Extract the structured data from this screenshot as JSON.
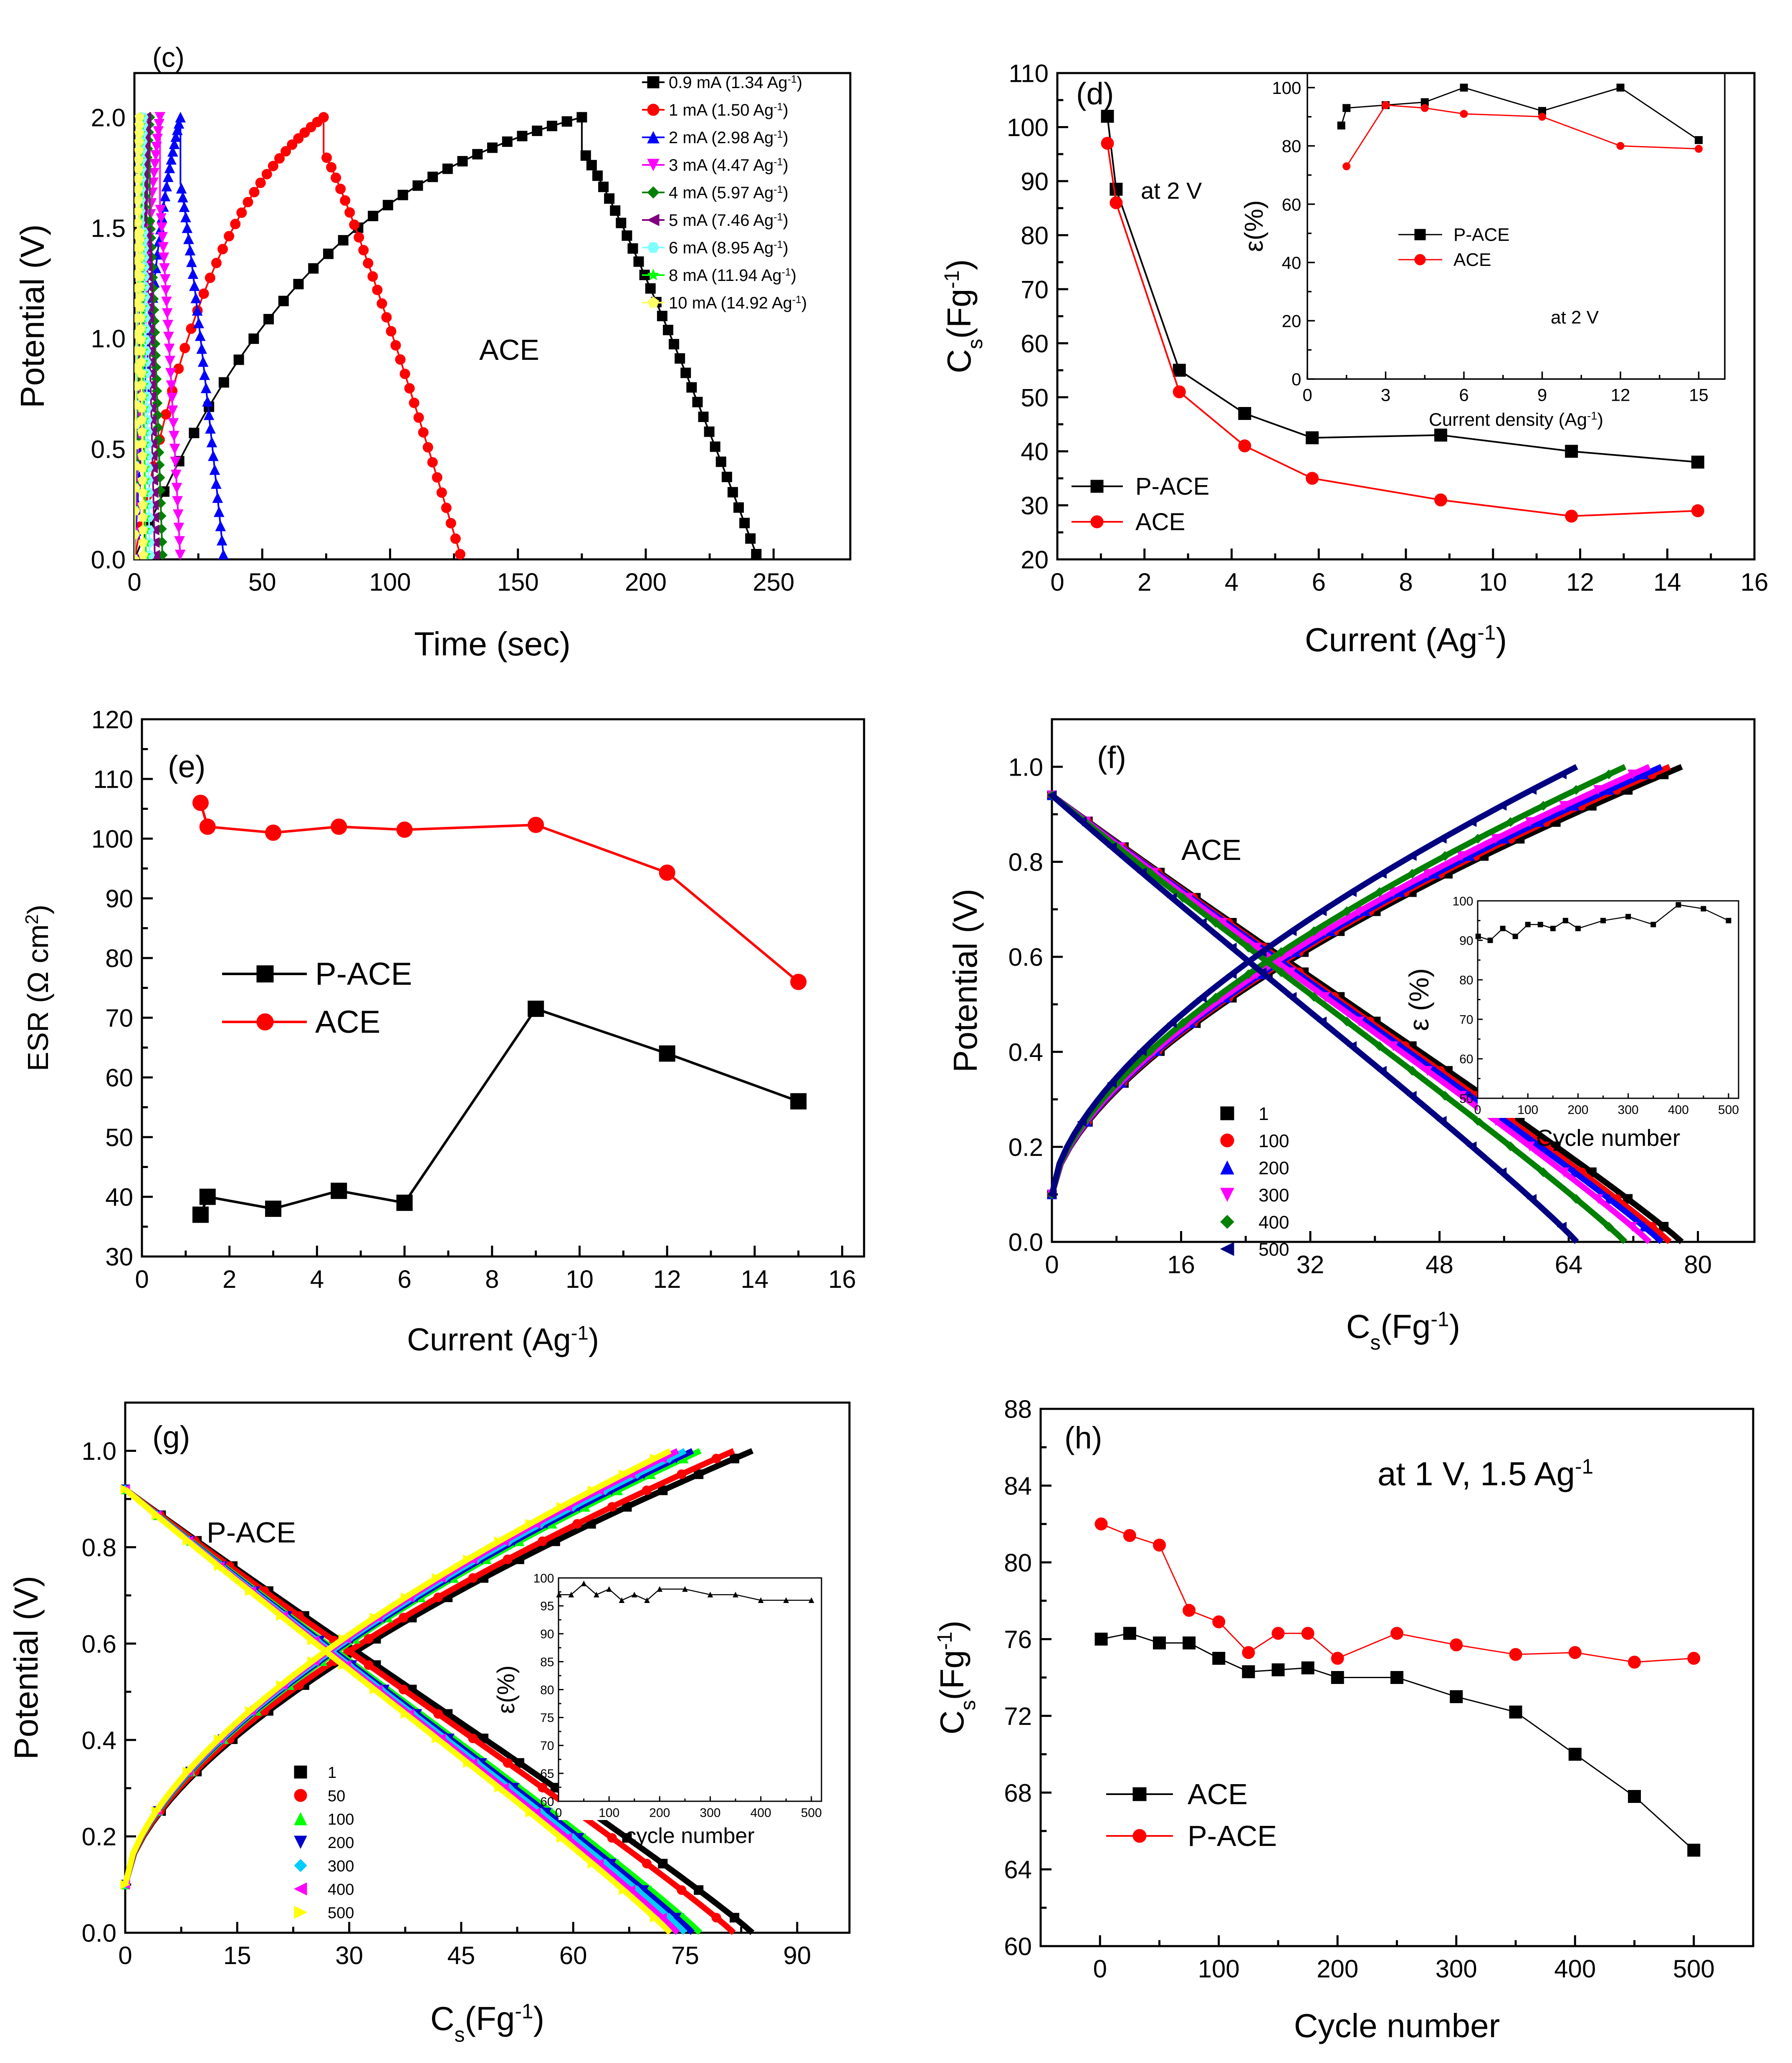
{
  "chart_data": [
    {
      "id": "c",
      "type": "line",
      "panel_label": "(c)",
      "annotation": "ACE",
      "xlabel": "Time (sec)",
      "ylabel": "Potential (V)",
      "xlim": [
        0,
        280
      ],
      "ylim": [
        0,
        2.2
      ],
      "xticks": [
        0,
        50,
        100,
        150,
        200,
        250
      ],
      "yticks": [
        0,
        0.5,
        1,
        1.5,
        2
      ],
      "xtick_labels": [
        "0",
        "50",
        "100",
        "150",
        "200",
        "250"
      ],
      "ytick_labels": [
        "0.0",
        "0.5",
        "1.0",
        "1.5",
        "2.0"
      ],
      "series": [
        {
          "name": "0.9 mA (1.34 Ag",
          "sup": "-1",
          "tail": ")",
          "marker": "square",
          "color": "#000000",
          "tc": 175,
          "td": 244,
          "drop": 0.15,
          "k": 2.2
        },
        {
          "name": "1 mA (1.50 Ag",
          "sup": "-1",
          "tail": ")",
          "marker": "circle",
          "color": "#ff0000",
          "tc": 74,
          "td": 128,
          "drop": 0.16,
          "k": 2.0
        },
        {
          "name": "2 mA (2.98 Ag",
          "sup": "-1",
          "tail": ")",
          "marker": "triangle-up",
          "color": "#0000ff",
          "tc": 18,
          "td": 35,
          "drop": 0.3,
          "k": 1.6
        },
        {
          "name": "3 mA (4.47 Ag",
          "sup": "-1",
          "tail": ")",
          "marker": "triangle-down",
          "color": "#ff00ff",
          "tc": 10,
          "td": 18,
          "drop": 0.4,
          "k": 1.4
        },
        {
          "name": "4 mA (5.97 Ag",
          "sup": "-1",
          "tail": ")",
          "marker": "diamond",
          "color": "#008000",
          "tc": 6,
          "td": 11,
          "drop": 0.45,
          "k": 1.3
        },
        {
          "name": "5 mA (7.46 Ag",
          "sup": "-1",
          "tail": ")",
          "marker": "triangle-left",
          "color": "#800080",
          "tc": 4.5,
          "td": 8,
          "drop": 0.5,
          "k": 1.2
        },
        {
          "name": "6 mA (8.95 Ag",
          "sup": "-1",
          "tail": ")",
          "marker": "hexagon",
          "color": "#80ffff",
          "tc": 3.5,
          "td": 6,
          "drop": 0.5,
          "k": 1.2
        },
        {
          "name": "8 mA (11.94 Ag",
          "sup": "-1",
          "tail": ")",
          "marker": "star",
          "color": "#00ff00",
          "tc": 2.5,
          "td": 4.5,
          "drop": 0.5,
          "k": 1.2
        },
        {
          "name": "10 mA (14.92 Ag",
          "sup": "-1",
          "tail": ")",
          "marker": "pentagon",
          "color": "#ffff66",
          "tc": 2,
          "td": 3.5,
          "drop": 0.5,
          "k": 1.2
        }
      ]
    },
    {
      "id": "d",
      "type": "line",
      "panel_label": "(d)",
      "annotation": "at 2 V",
      "xlabel": "Current (Ag",
      "xlabel_sup": "-1",
      "xlabel_tail": ")",
      "ylabel": "C",
      "ylabel_sub": "s",
      "ylabel_tail": "(Fg",
      "ylabel_sup": "-1",
      "ylabel_tail2": ")",
      "xlim": [
        0,
        16
      ],
      "ylim": [
        20,
        110
      ],
      "xticks": [
        0,
        2,
        4,
        6,
        8,
        10,
        12,
        14,
        16
      ],
      "yticks": [
        20,
        30,
        40,
        50,
        60,
        70,
        80,
        90,
        100,
        110
      ],
      "xtick_labels": [
        "0",
        "2",
        "4",
        "6",
        "8",
        "10",
        "12",
        "14",
        "16"
      ],
      "ytick_labels": [
        "20",
        "30",
        "40",
        "50",
        "60",
        "70",
        "80",
        "90",
        "100",
        "110"
      ],
      "series": [
        {
          "name": "P-ACE",
          "marker": "square",
          "color": "#000000",
          "x": [
            1.15,
            1.35,
            2.8,
            4.3,
            5.85,
            8.8,
            11.8,
            14.7
          ],
          "y": [
            102,
            88.5,
            55,
            47,
            42.5,
            43,
            40,
            38
          ]
        },
        {
          "name": "ACE",
          "marker": "circle",
          "color": "#ff0000",
          "x": [
            1.15,
            1.35,
            2.8,
            4.3,
            5.85,
            8.8,
            11.8,
            14.7
          ],
          "y": [
            97,
            86,
            51,
            41,
            35,
            31,
            28,
            29
          ]
        }
      ],
      "inset": {
        "xlabel": "Current density (Ag",
        "xlabel_sup": "-1",
        "xlabel_tail": ")",
        "ylabel": "ε(%)",
        "annotation": "at 2 V",
        "xlim": [
          0,
          16
        ],
        "ylim": [
          0,
          105
        ],
        "xticks": [
          0,
          3,
          6,
          9,
          12,
          15
        ],
        "yticks": [
          0,
          20,
          40,
          60,
          80,
          100
        ],
        "xtick_labels": [
          "0",
          "3",
          "6",
          "9",
          "12",
          "15"
        ],
        "ytick_labels": [
          "0",
          "20",
          "40",
          "60",
          "80",
          "100"
        ],
        "series": [
          {
            "name": "P-ACE",
            "marker": "square",
            "color": "#000000",
            "x": [
              1.3,
              1.5,
              3,
              4.5,
              6,
              9,
              12,
              15
            ],
            "y": [
              87,
              93,
              94,
              95,
              100,
              92,
              100,
              82
            ]
          },
          {
            "name": "ACE",
            "marker": "circle",
            "color": "#ff0000",
            "x": [
              1.5,
              3,
              4.5,
              6,
              9,
              12,
              15
            ],
            "y": [
              73,
              94,
              93,
              91,
              90,
              80,
              79
            ]
          }
        ]
      }
    },
    {
      "id": "e",
      "type": "line",
      "panel_label": "(e)",
      "xlabel": "Current (Ag",
      "xlabel_sup": "-1",
      "xlabel_tail": ")",
      "ylabel": "ESR (Ω cm",
      "ylabel_sup": "2",
      "ylabel_tail": ")",
      "xlim": [
        0,
        16.5
      ],
      "ylim": [
        30,
        120
      ],
      "xticks": [
        0,
        2,
        4,
        6,
        8,
        10,
        12,
        14,
        16
      ],
      "yticks": [
        30,
        40,
        50,
        60,
        70,
        80,
        90,
        100,
        110,
        120
      ],
      "xtick_labels": [
        "0",
        "2",
        "4",
        "6",
        "8",
        "10",
        "12",
        "14",
        "16"
      ],
      "ytick_labels": [
        "30",
        "40",
        "50",
        "60",
        "70",
        "80",
        "90",
        "100",
        "110",
        "120"
      ],
      "series": [
        {
          "name": "P-ACE",
          "marker": "square",
          "color": "#000000",
          "x": [
            1.34,
            1.5,
            3,
            4.5,
            6,
            9,
            12,
            15
          ],
          "y": [
            37,
            40,
            38,
            41,
            39,
            71.5,
            64,
            56
          ]
        },
        {
          "name": "ACE",
          "marker": "circle",
          "color": "#ff0000",
          "x": [
            1.34,
            1.5,
            3,
            4.5,
            6,
            9,
            12,
            15
          ],
          "y": [
            106,
            102,
            101,
            102,
            101.5,
            102.3,
            94.3,
            76
          ]
        }
      ]
    },
    {
      "id": "f",
      "type": "line",
      "panel_label": "(f)",
      "annotation": "ACE",
      "xlabel": "C",
      "xlabel_sub": "s",
      "xlabel_tail": "(Fg",
      "xlabel_sup": "-1",
      "xlabel_tail2": ")",
      "ylabel": "Potential (V)",
      "xlim": [
        0,
        87
      ],
      "ylim": [
        0,
        1.1
      ],
      "xticks": [
        0,
        16,
        32,
        48,
        64,
        80
      ],
      "yticks": [
        0,
        0.2,
        0.4,
        0.6,
        0.8,
        1.0
      ],
      "xtick_labels": [
        "0",
        "16",
        "32",
        "48",
        "64",
        "80"
      ],
      "ytick_labels": [
        "0.0",
        "0.2",
        "0.4",
        "0.6",
        "0.8",
        "1.0"
      ],
      "series": [
        {
          "name": "1",
          "marker": "square",
          "color": "#000000",
          "xmax": 78
        },
        {
          "name": "100",
          "marker": "circle",
          "color": "#ff0000",
          "xmax": 76.5
        },
        {
          "name": "200",
          "marker": "triangle-up",
          "color": "#0000ff",
          "xmax": 75.5
        },
        {
          "name": "300",
          "marker": "triangle-down",
          "color": "#ff00ff",
          "xmax": 74
        },
        {
          "name": "400",
          "marker": "diamond",
          "color": "#008000",
          "xmax": 71
        },
        {
          "name": "500",
          "marker": "triangle-left",
          "color": "#000080",
          "xmax": 65
        }
      ],
      "inset": {
        "xlabel": "Cycle number",
        "ylabel": "ε (%)",
        "xlim": [
          0,
          520
        ],
        "ylim": [
          50,
          100
        ],
        "xticks": [
          0,
          100,
          200,
          300,
          400,
          500
        ],
        "yticks": [
          50,
          60,
          70,
          80,
          90,
          100
        ],
        "xtick_labels": [
          "0",
          "100",
          "200",
          "300",
          "400",
          "500"
        ],
        "ytick_labels": [
          "50",
          "60",
          "70",
          "80",
          "90",
          "100"
        ],
        "series": [
          {
            "name": "ε",
            "marker": "square",
            "color": "#000000",
            "x": [
              1,
              25,
              50,
              75,
              100,
              125,
              150,
              175,
              200,
              250,
              300,
              350,
              400,
              450,
              500
            ],
            "y": [
              91,
              90,
              93,
              91,
              94,
              94,
              93,
              95,
              93,
              95,
              96,
              94,
              99,
              98,
              95
            ]
          }
        ]
      }
    },
    {
      "id": "g",
      "type": "line",
      "panel_label": "(g)",
      "annotation": "P-ACE",
      "xlabel": "C",
      "xlabel_sub": "s",
      "xlabel_tail": "(Fg",
      "xlabel_sup": "-1",
      "xlabel_tail2": ")",
      "ylabel": "Potential (V)",
      "xlim": [
        0,
        97
      ],
      "ylim": [
        0,
        1.1
      ],
      "xticks": [
        0,
        15,
        30,
        45,
        60,
        75,
        90
      ],
      "yticks": [
        0,
        0.2,
        0.4,
        0.6,
        0.8,
        1.0
      ],
      "xtick_labels": [
        "0",
        "15",
        "30",
        "45",
        "60",
        "75",
        "90"
      ],
      "ytick_labels": [
        "0.0",
        "0.2",
        "0.4",
        "0.6",
        "0.8",
        "1.0"
      ],
      "series": [
        {
          "name": "1",
          "marker": "square",
          "color": "#000000",
          "xmax": 84
        },
        {
          "name": "50",
          "marker": "circle",
          "color": "#ff0000",
          "xmax": 81.5
        },
        {
          "name": "100",
          "marker": "triangle-up",
          "color": "#00ff00",
          "xmax": 77
        },
        {
          "name": "200",
          "marker": "triangle-down",
          "color": "#0000cc",
          "xmax": 76
        },
        {
          "name": "300",
          "marker": "diamond",
          "color": "#00ccff",
          "xmax": 75
        },
        {
          "name": "400",
          "marker": "triangle-left",
          "color": "#ff00ff",
          "xmax": 74
        },
        {
          "name": "500",
          "marker": "triangle-right",
          "color": "#ffff00",
          "xmax": 73
        }
      ],
      "inset": {
        "xlabel": "cycle number",
        "ylabel": "ε(%)",
        "xlim": [
          0,
          520
        ],
        "ylim": [
          60,
          100
        ],
        "xticks": [
          0,
          100,
          200,
          300,
          400,
          500
        ],
        "yticks": [
          60,
          65,
          70,
          75,
          80,
          85,
          90,
          95,
          100
        ],
        "xtick_labels": [
          "0",
          "100",
          "200",
          "300",
          "400",
          "500"
        ],
        "ytick_labels": [
          "60",
          "65",
          "70",
          "75",
          "80",
          "85",
          "90",
          "95",
          "100"
        ],
        "series": [
          {
            "name": "ε",
            "marker": "triangle-up",
            "color": "#000000",
            "x": [
              1,
              25,
              50,
              75,
              100,
              125,
              150,
              175,
              200,
              250,
              300,
              350,
              400,
              450,
              500
            ],
            "y": [
              97,
              97,
              99,
              97,
              98,
              96,
              97,
              96,
              98,
              98,
              97,
              97,
              96,
              96,
              96
            ]
          }
        ]
      }
    },
    {
      "id": "h",
      "type": "line",
      "panel_label": "(h)",
      "annotation": "at 1 V, 1.5 Ag",
      "annotation_sup": "-1",
      "xlabel": "Cycle number",
      "ylabel": "C",
      "ylabel_sub": "s",
      "ylabel_tail": "(Fg",
      "ylabel_sup": "-1",
      "ylabel_tail2": ")",
      "xlim": [
        -50,
        550
      ],
      "ylim": [
        60,
        88
      ],
      "xticks": [
        0,
        100,
        200,
        300,
        400,
        500
      ],
      "yticks": [
        60,
        64,
        68,
        72,
        76,
        80,
        84,
        88
      ],
      "xtick_labels": [
        "0",
        "100",
        "200",
        "300",
        "400",
        "500"
      ],
      "ytick_labels": [
        "60",
        "64",
        "68",
        "72",
        "76",
        "80",
        "84",
        "88"
      ],
      "series": [
        {
          "name": "ACE",
          "marker": "square",
          "color": "#000000",
          "x": [
            1,
            25,
            50,
            75,
            100,
            125,
            150,
            175,
            200,
            250,
            300,
            350,
            400,
            450,
            500
          ],
          "y": [
            76,
            76.3,
            75.8,
            75.8,
            75,
            74.3,
            74.4,
            74.5,
            74,
            74,
            73,
            72.2,
            70,
            67.8,
            65
          ]
        },
        {
          "name": "P-ACE",
          "marker": "circle",
          "color": "#ff0000",
          "x": [
            1,
            25,
            50,
            75,
            100,
            125,
            150,
            175,
            200,
            250,
            300,
            350,
            400,
            450,
            500
          ],
          "y": [
            82,
            81.4,
            80.9,
            77.5,
            76.9,
            75.3,
            76.3,
            76.3,
            75,
            76.3,
            75.7,
            75.2,
            75.3,
            74.8,
            75
          ]
        }
      ]
    }
  ]
}
